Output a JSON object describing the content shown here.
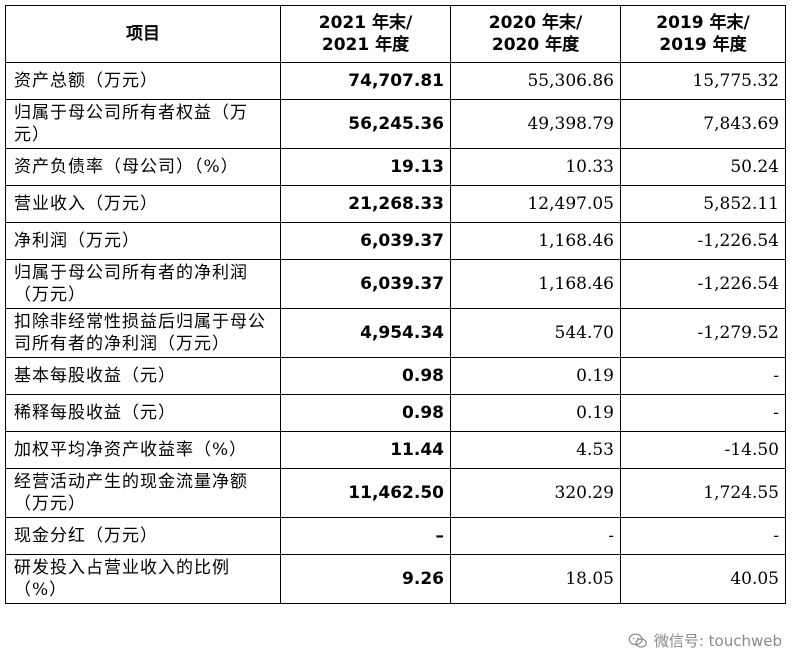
{
  "table": {
    "headers": [
      "项目",
      "2021 年末/\n2021 年度",
      "2020 年末/\n2020 年度",
      "2019 年末/\n2019 年度"
    ],
    "rows": [
      {
        "label": "资产总额（万元）",
        "values": [
          "74,707.81",
          "55,306.86",
          "15,775.32"
        ],
        "tall": false
      },
      {
        "label": "归属于母公司所有者权益（万元）",
        "values": [
          "56,245.36",
          "49,398.79",
          "7,843.69"
        ],
        "tall": true
      },
      {
        "label": "资产负债率（母公司）（%）",
        "values": [
          "19.13",
          "10.33",
          "50.24"
        ],
        "tall": false
      },
      {
        "label": "营业收入（万元）",
        "values": [
          "21,268.33",
          "12,497.05",
          "5,852.11"
        ],
        "tall": false
      },
      {
        "label": "净利润（万元）",
        "values": [
          "6,039.37",
          "1,168.46",
          "-1,226.54"
        ],
        "tall": false
      },
      {
        "label": "归属于母公司所有者的净利润（万元）",
        "values": [
          "6,039.37",
          "1,168.46",
          "-1,226.54"
        ],
        "tall": true
      },
      {
        "label": "扣除非经常性损益后归属于母公司所有者的净利润（万元）",
        "values": [
          "4,954.34",
          "544.70",
          "-1,279.52"
        ],
        "tall": true
      },
      {
        "label": "基本每股收益（元）",
        "values": [
          "0.98",
          "0.19",
          "-"
        ],
        "tall": false
      },
      {
        "label": "稀释每股收益（元）",
        "values": [
          "0.98",
          "0.19",
          "-"
        ],
        "tall": false
      },
      {
        "label": "加权平均净资产收益率（%）",
        "values": [
          "11.44",
          "4.53",
          "-14.50"
        ],
        "tall": false
      },
      {
        "label": "经营活动产生的现金流量净额（万元）",
        "values": [
          "11,462.50",
          "320.29",
          "1,724.55"
        ],
        "tall": true
      },
      {
        "label": "现金分红（万元）",
        "values": [
          "–",
          "-",
          "-"
        ],
        "tall": false
      },
      {
        "label": "研发投入占营业收入的比例（%）",
        "values": [
          "9.26",
          "18.05",
          "40.05"
        ],
        "tall": true
      }
    ]
  },
  "watermark": {
    "text": "微信号: touchweb",
    "icon": "wechat-icon"
  }
}
